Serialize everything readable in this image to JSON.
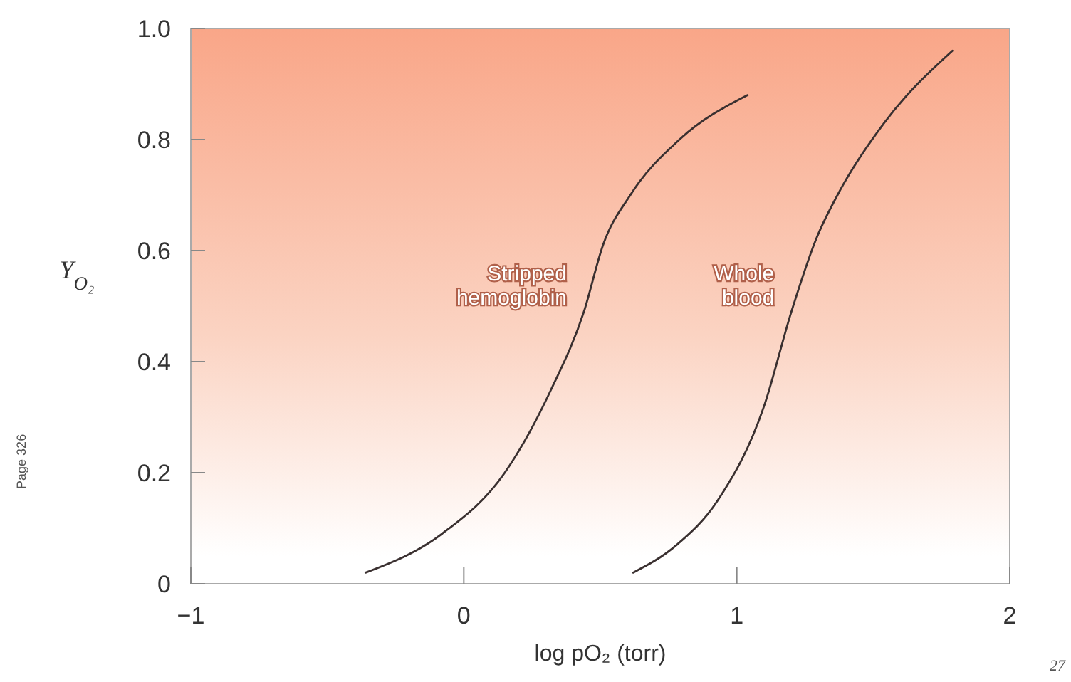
{
  "chart_data": {
    "type": "line",
    "xlabel": "log pO₂ (torr)",
    "ylabel": "Y$_{O₂}$",
    "xlim": [
      -1,
      2
    ],
    "xticks": [
      {
        "value": -1,
        "label": "−1"
      },
      0,
      1,
      2
    ],
    "ylim": [
      0,
      1
    ],
    "yticks": [
      0,
      0.2,
      0.4,
      0.6,
      0.8,
      {
        "value": 1,
        "label": "1.0"
      }
    ],
    "grid": false,
    "marker": "none",
    "line_style": "solid",
    "annotations": [
      "Page 326",
      "27"
    ],
    "series": [
      {
        "name": "Stripped hemoglobin",
        "color": "#3a3030",
        "x": [
          -0.36,
          -0.08,
          0.15,
          0.32,
          0.44,
          0.51,
          0.61,
          0.79,
          1.04
        ],
        "values": [
          0.02,
          0.09,
          0.2,
          0.35,
          0.49,
          0.61,
          0.7,
          0.8,
          0.88
        ]
      },
      {
        "name": "Whole blood",
        "color": "#3a3030",
        "x": [
          0.62,
          0.78,
          0.93,
          1.1,
          1.2,
          1.29,
          1.38,
          1.54,
          1.79
        ],
        "values": [
          0.02,
          0.07,
          0.15,
          0.32,
          0.49,
          0.62,
          0.71,
          0.83,
          0.96
        ]
      }
    ]
  }
}
